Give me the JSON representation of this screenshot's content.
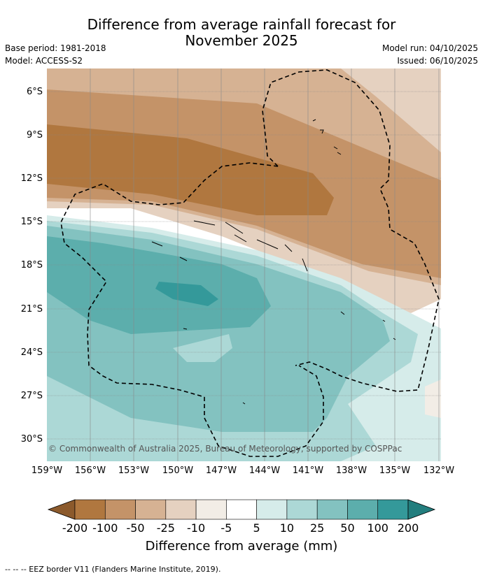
{
  "header": {
    "title_line1": "Difference from average rainfall forecast for",
    "title_line2": "November 2025",
    "base_period": "Base period: 1981-2018",
    "model": "Model: ACCESS-S2",
    "model_run": "Model run: 04/10/2025",
    "issued": "Issued: 06/10/2025"
  },
  "map": {
    "lat_labels": [
      "6°S",
      "9°S",
      "12°S",
      "15°S",
      "18°S",
      "21°S",
      "24°S",
      "27°S",
      "30°S"
    ],
    "lon_labels": [
      "159°W",
      "156°W",
      "153°W",
      "150°W",
      "147°W",
      "144°W",
      "141°W",
      "138°W",
      "135°W",
      "132°W"
    ],
    "copyright": "© Commonwealth of Australia 2025, Bureau of Meteorology, supported by COSPPac"
  },
  "legend": {
    "ticks": [
      "-200",
      "-100",
      "-50",
      "-25",
      "-10",
      "-5",
      "5",
      "10",
      "25",
      "50",
      "100",
      "200"
    ],
    "colors": [
      "#8c5a2c",
      "#b0773f",
      "#c49368",
      "#d6b293",
      "#e5d1c0",
      "#f2ede6",
      "#ffffff",
      "#d6ecea",
      "#acd8d6",
      "#83c2c0",
      "#5caeac",
      "#34999a",
      "#237e7e"
    ],
    "title": "Difference from average (mm)"
  },
  "footnote": "--  --  -- EEZ border V11 (Flanders Marine Institute, 2019)."
}
